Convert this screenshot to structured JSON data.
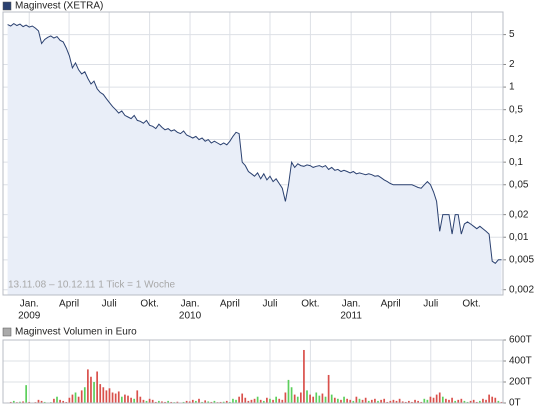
{
  "chart_data": [
    {
      "type": "line",
      "legend": "Maginvest (XETRA)",
      "note": "13.11.08 – 10.12.11   1 Tick = 1 Woche",
      "log_scale": true,
      "grid": true,
      "area_color": "#e9eef8",
      "series": [
        {
          "name": "Maginvest (XETRA)",
          "color": "#2b4170",
          "values": [
            6.8,
            6.5,
            7.0,
            6.6,
            6.9,
            6.4,
            6.7,
            6.3,
            6.5,
            6.1,
            5.6,
            3.8,
            4.3,
            4.6,
            4.8,
            4.5,
            4.7,
            4.2,
            4.0,
            3.3,
            2.6,
            1.8,
            2.1,
            1.7,
            1.5,
            1.6,
            1.3,
            1.1,
            1.2,
            0.95,
            0.85,
            0.8,
            0.7,
            0.62,
            0.55,
            0.5,
            0.45,
            0.48,
            0.42,
            0.4,
            0.38,
            0.42,
            0.36,
            0.35,
            0.33,
            0.36,
            0.31,
            0.3,
            0.28,
            0.32,
            0.29,
            0.27,
            0.28,
            0.26,
            0.27,
            0.25,
            0.24,
            0.26,
            0.23,
            0.22,
            0.21,
            0.22,
            0.2,
            0.21,
            0.19,
            0.2,
            0.18,
            0.19,
            0.18,
            0.17,
            0.18,
            0.17,
            0.19,
            0.22,
            0.25,
            0.24,
            0.1,
            0.09,
            0.075,
            0.07,
            0.065,
            0.072,
            0.06,
            0.07,
            0.058,
            0.065,
            0.055,
            0.06,
            0.052,
            0.045,
            0.03,
            0.05,
            0.1,
            0.085,
            0.095,
            0.09,
            0.088,
            0.092,
            0.09,
            0.085,
            0.088,
            0.09,
            0.086,
            0.09,
            0.08,
            0.085,
            0.078,
            0.08,
            0.075,
            0.078,
            0.075,
            0.072,
            0.075,
            0.07,
            0.072,
            0.07,
            0.068,
            0.07,
            0.068,
            0.065,
            0.066,
            0.062,
            0.058,
            0.055,
            0.052,
            0.05,
            0.05,
            0.05,
            0.05,
            0.05,
            0.05,
            0.05,
            0.048,
            0.046,
            0.045,
            0.05,
            0.055,
            0.05,
            0.04,
            0.03,
            0.012,
            0.02,
            0.02,
            0.02,
            0.011,
            0.02,
            0.02,
            0.011,
            0.015,
            0.016,
            0.015,
            0.014,
            0.013,
            0.014,
            0.013,
            0.012,
            0.011,
            0.0048,
            0.0045,
            0.005,
            0.005
          ]
        }
      ],
      "xlim": [
        -1.5,
        160.5
      ],
      "xticks": [
        {
          "value": 7.0,
          "label": "Jan."
        },
        {
          "value": 19.9,
          "label": "April"
        },
        {
          "value": 32.9,
          "label": "Juli"
        },
        {
          "value": 46.0,
          "label": "Okt."
        },
        {
          "value": 59.1,
          "label": "Jan."
        },
        {
          "value": 72.0,
          "label": "April"
        },
        {
          "value": 85.0,
          "label": "Juli"
        },
        {
          "value": 98.1,
          "label": "Okt."
        },
        {
          "value": 111.3,
          "label": "Jan."
        },
        {
          "value": 124.1,
          "label": "April"
        },
        {
          "value": 137.1,
          "label": "Juli"
        },
        {
          "value": 150.3,
          "label": "Okt."
        }
      ],
      "xtick_sublabels": [
        {
          "value": 7.0,
          "label": "2009"
        },
        {
          "value": 59.1,
          "label": "2010"
        },
        {
          "value": 111.3,
          "label": "2011"
        }
      ],
      "ylim": [
        0.0017,
        10
      ],
      "yticks": [
        5,
        2,
        1,
        {
          "value": 0.5,
          "label": "0,5"
        },
        {
          "value": 0.2,
          "label": "0,2"
        },
        {
          "value": 0.1,
          "label": "0,1"
        },
        {
          "value": 0.05,
          "label": "0,05"
        },
        {
          "value": 0.02,
          "label": "0,02"
        },
        {
          "value": 0.01,
          "label": "0,01"
        },
        {
          "value": 0.005,
          "label": "0,005"
        },
        {
          "value": 0.002,
          "label": "0,002"
        }
      ]
    },
    {
      "type": "bar",
      "legend": "Maginvest Volumen in Euro",
      "grid": true,
      "up_color": "#5ccf5c",
      "down_color": "#d9504b",
      "series": [
        {
          "name": "Maginvest Volumen in Euro",
          "values": [
            5,
            10,
            20,
            8,
            12,
            15,
            170,
            10,
            5,
            8,
            30,
            20,
            10,
            5,
            8,
            40,
            60,
            30,
            20,
            10,
            50,
            80,
            100,
            60,
            120,
            150,
            320,
            250,
            200,
            300,
            180,
            150,
            120,
            140,
            100,
            90,
            110,
            60,
            80,
            70,
            50,
            40,
            120,
            60,
            30,
            20,
            40,
            30,
            10,
            20,
            15,
            10,
            20,
            10,
            8,
            12,
            5,
            10,
            20,
            15,
            30,
            20,
            40,
            10,
            25,
            15,
            10,
            20,
            8,
            10,
            12,
            20,
            10,
            40,
            30,
            60,
            90,
            50,
            20,
            30,
            40,
            60,
            30,
            20,
            50,
            40,
            30,
            60,
            40,
            30,
            100,
            220,
            150,
            80,
            60,
            100,
            505,
            120,
            80,
            60,
            100,
            70,
            90,
            60,
            267,
            80,
            50,
            40,
            30,
            60,
            40,
            30,
            20,
            60,
            40,
            30,
            50,
            20,
            30,
            40,
            20,
            30,
            40,
            10,
            20,
            30,
            20,
            40,
            15,
            10,
            20,
            10,
            30,
            20,
            10,
            40,
            30,
            60,
            50,
            80,
            100,
            60,
            40,
            30,
            50,
            20,
            30,
            40,
            20,
            10,
            20,
            30,
            10,
            20,
            40,
            30,
            80,
            60,
            50,
            20,
            10
          ]
        }
      ],
      "ylim": [
        0,
        600
      ],
      "yticks": [
        {
          "value": 0,
          "label": "0T"
        },
        {
          "value": 200,
          "label": "200T"
        },
        {
          "value": 400,
          "label": "400T"
        },
        {
          "value": 600,
          "label": "600T"
        }
      ]
    }
  ]
}
